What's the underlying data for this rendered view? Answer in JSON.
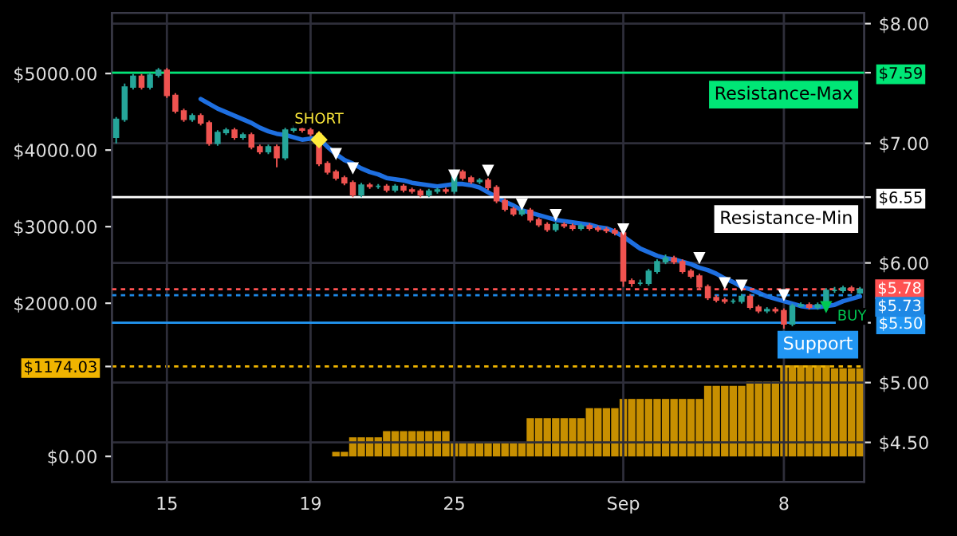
{
  "chart_data": {
    "type": "candlestick",
    "categories": [
      null,
      null,
      null,
      null,
      null,
      null,
      "15",
      null,
      null,
      null,
      null,
      null,
      null,
      null,
      null,
      null,
      null,
      null,
      null,
      null,
      null,
      null,
      null,
      "19",
      null,
      null,
      null,
      null,
      null,
      null,
      null,
      null,
      null,
      null,
      null,
      null,
      null,
      null,
      null,
      null,
      "25",
      null,
      null,
      null,
      null,
      null,
      null,
      null,
      null,
      null,
      null,
      null,
      null,
      null,
      null,
      null,
      null,
      null,
      null,
      null,
      "Sep",
      null,
      null,
      null,
      null,
      null,
      null,
      null,
      null,
      null,
      null,
      null,
      null,
      null,
      null,
      null,
      null,
      null,
      null,
      "8",
      null,
      null,
      null,
      null,
      null,
      null,
      null,
      null,
      null
    ],
    "ohlc": [
      [
        7.05,
        7.22,
        7.0,
        7.2
      ],
      [
        7.2,
        7.5,
        7.18,
        7.47
      ],
      [
        7.47,
        7.58,
        7.45,
        7.56
      ],
      [
        7.56,
        7.58,
        7.45,
        7.47
      ],
      [
        7.47,
        7.59,
        7.45,
        7.57
      ],
      [
        7.57,
        7.63,
        7.55,
        7.61
      ],
      [
        7.61,
        7.63,
        7.38,
        7.4
      ],
      [
        7.4,
        7.42,
        7.25,
        7.27
      ],
      [
        7.27,
        7.29,
        7.18,
        7.2
      ],
      [
        7.2,
        7.25,
        7.18,
        7.23
      ],
      [
        7.23,
        7.25,
        7.15,
        7.17
      ],
      [
        7.17,
        7.19,
        6.98,
        7.0
      ],
      [
        7.0,
        7.11,
        6.98,
        7.09
      ],
      [
        7.09,
        7.13,
        7.07,
        7.11
      ],
      [
        7.11,
        7.13,
        7.03,
        7.05
      ],
      [
        7.05,
        7.09,
        7.03,
        7.07
      ],
      [
        7.07,
        7.09,
        6.95,
        6.97
      ],
      [
        6.97,
        6.99,
        6.91,
        6.93
      ],
      [
        6.93,
        6.99,
        6.91,
        6.97
      ],
      [
        6.97,
        6.99,
        6.8,
        6.88
      ],
      [
        6.88,
        7.13,
        6.86,
        7.11
      ],
      [
        7.11,
        7.15,
        7.09,
        7.12
      ],
      [
        7.12,
        7.14,
        7.09,
        7.11
      ],
      [
        7.11,
        7.13,
        7.06,
        7.08
      ],
      [
        7.08,
        7.1,
        6.81,
        6.83
      ],
      [
        6.83,
        6.85,
        6.74,
        6.76
      ],
      [
        6.76,
        6.78,
        6.69,
        6.71
      ],
      [
        6.71,
        6.73,
        6.65,
        6.67
      ],
      [
        6.67,
        6.69,
        6.55,
        6.57
      ],
      [
        6.57,
        6.67,
        6.55,
        6.65
      ],
      [
        6.65,
        6.67,
        6.62,
        6.64
      ],
      [
        6.64,
        6.66,
        6.62,
        6.64
      ],
      [
        6.64,
        6.66,
        6.59,
        6.61
      ],
      [
        6.61,
        6.66,
        6.59,
        6.64
      ],
      [
        6.64,
        6.66,
        6.59,
        6.61
      ],
      [
        6.61,
        6.63,
        6.58,
        6.6
      ],
      [
        6.6,
        6.62,
        6.55,
        6.57
      ],
      [
        6.57,
        6.62,
        6.55,
        6.6
      ],
      [
        6.6,
        6.63,
        6.58,
        6.61
      ],
      [
        6.61,
        6.63,
        6.58,
        6.6
      ],
      [
        6.6,
        6.78,
        6.58,
        6.76
      ],
      [
        6.76,
        6.78,
        6.69,
        6.71
      ],
      [
        6.71,
        6.73,
        6.66,
        6.68
      ],
      [
        6.68,
        6.71,
        6.66,
        6.69
      ],
      [
        6.69,
        6.71,
        6.61,
        6.63
      ],
      [
        6.63,
        6.65,
        6.5,
        6.52
      ],
      [
        6.52,
        6.54,
        6.43,
        6.45
      ],
      [
        6.45,
        6.47,
        6.39,
        6.41
      ],
      [
        6.41,
        6.46,
        6.39,
        6.44
      ],
      [
        6.44,
        6.46,
        6.34,
        6.36
      ],
      [
        6.36,
        6.38,
        6.3,
        6.32
      ],
      [
        6.32,
        6.34,
        6.26,
        6.28
      ],
      [
        6.28,
        6.34,
        6.26,
        6.32
      ],
      [
        6.32,
        6.34,
        6.29,
        6.31
      ],
      [
        6.31,
        6.33,
        6.27,
        6.29
      ],
      [
        6.29,
        6.33,
        6.27,
        6.31
      ],
      [
        6.31,
        6.33,
        6.27,
        6.29
      ],
      [
        6.29,
        6.31,
        6.26,
        6.28
      ],
      [
        6.28,
        6.3,
        6.25,
        6.27
      ],
      [
        6.27,
        6.29,
        6.23,
        6.25
      ],
      [
        6.25,
        6.27,
        5.8,
        5.85
      ],
      [
        5.85,
        5.87,
        5.8,
        5.83
      ],
      [
        5.83,
        5.86,
        5.81,
        5.83
      ],
      [
        5.83,
        5.95,
        5.81,
        5.93
      ],
      [
        5.93,
        6.03,
        5.91,
        6.01
      ],
      [
        6.01,
        6.07,
        5.99,
        6.04
      ],
      [
        6.04,
        6.06,
        5.99,
        6.01
      ],
      [
        6.01,
        6.03,
        5.91,
        5.93
      ],
      [
        5.93,
        5.95,
        5.87,
        5.89
      ],
      [
        5.89,
        5.91,
        5.78,
        5.8
      ],
      [
        5.8,
        5.82,
        5.69,
        5.71
      ],
      [
        5.71,
        5.73,
        5.67,
        5.69
      ],
      [
        5.69,
        5.71,
        5.66,
        5.68
      ],
      [
        5.68,
        5.7,
        5.66,
        5.68
      ],
      [
        5.68,
        5.74,
        5.66,
        5.72
      ],
      [
        5.72,
        5.74,
        5.61,
        5.63
      ],
      [
        5.63,
        5.65,
        5.58,
        5.6
      ],
      [
        5.6,
        5.63,
        5.58,
        5.61
      ],
      [
        5.61,
        5.63,
        5.58,
        5.6
      ],
      [
        5.6,
        5.62,
        5.45,
        5.49
      ],
      [
        5.49,
        5.66,
        5.47,
        5.64
      ],
      [
        5.64,
        5.67,
        5.63,
        5.65
      ],
      [
        5.65,
        5.67,
        5.61,
        5.63
      ],
      [
        5.63,
        5.67,
        5.61,
        5.65
      ],
      [
        5.65,
        5.79,
        5.63,
        5.77
      ],
      [
        5.77,
        5.8,
        5.75,
        5.77
      ],
      [
        5.77,
        5.81,
        5.75,
        5.79
      ],
      [
        5.79,
        5.81,
        5.75,
        5.77
      ],
      [
        5.75,
        5.8,
        5.74,
        5.78
      ]
    ],
    "series": [
      {
        "type": "bar",
        "axis": "y2",
        "color": "#c78f00",
        "values": [
          0,
          0,
          0,
          0,
          0,
          0,
          0,
          0,
          0,
          0,
          0,
          0,
          0,
          0,
          0,
          0,
          0,
          0,
          0,
          0,
          0,
          0,
          0,
          0,
          0,
          0,
          60,
          60,
          250,
          250,
          250,
          250,
          330,
          330,
          330,
          330,
          330,
          330,
          330,
          330,
          170,
          170,
          170,
          170,
          170,
          170,
          170,
          170,
          170,
          500,
          500,
          500,
          500,
          500,
          500,
          500,
          630,
          630,
          630,
          630,
          750,
          750,
          750,
          750,
          750,
          750,
          750,
          750,
          750,
          750,
          920,
          920,
          920,
          920,
          920,
          980,
          980,
          980,
          980,
          1190,
          1190,
          1190,
          1190,
          1190,
          1190,
          1150,
          1150,
          1150,
          1150
        ]
      },
      {
        "type": "line",
        "color": "#1e6fe0",
        "values": [
          null,
          null,
          null,
          null,
          null,
          null,
          null,
          null,
          null,
          null,
          7.37,
          7.33,
          7.29,
          7.26,
          7.23,
          7.2,
          7.17,
          7.13,
          7.1,
          7.08,
          7.07,
          7.05,
          7.03,
          7.04,
          7.04,
          6.97,
          6.91,
          6.86,
          6.83,
          6.79,
          6.76,
          6.74,
          6.71,
          6.7,
          6.69,
          6.67,
          6.66,
          6.65,
          6.64,
          6.65,
          6.66,
          6.66,
          6.65,
          6.63,
          6.59,
          6.55,
          6.51,
          6.48,
          6.44,
          6.42,
          6.4,
          6.38,
          6.36,
          6.35,
          6.34,
          6.33,
          6.32,
          6.3,
          6.29,
          6.26,
          6.22,
          6.17,
          6.12,
          6.09,
          6.06,
          6.04,
          6.03,
          6.01,
          5.99,
          5.96,
          5.94,
          5.91,
          5.87,
          5.84,
          5.8,
          5.78,
          5.75,
          5.72,
          5.7,
          5.68,
          5.66,
          5.64,
          5.63,
          5.63,
          5.64,
          5.65,
          5.68,
          5.7,
          5.72
        ]
      },
      {
        "type": "scatter",
        "color": "#ffffff",
        "marker": "triangle",
        "values": [
          null,
          null,
          null,
          null,
          null,
          null,
          null,
          null,
          null,
          null,
          null,
          null,
          null,
          null,
          null,
          null,
          null,
          null,
          null,
          null,
          null,
          null,
          null,
          null,
          null,
          null,
          6.91,
          null,
          6.79,
          null,
          null,
          null,
          null,
          null,
          null,
          null,
          null,
          null,
          null,
          null,
          6.73,
          null,
          null,
          null,
          6.77,
          null,
          null,
          null,
          6.49,
          null,
          null,
          null,
          6.4,
          null,
          null,
          null,
          null,
          null,
          null,
          null,
          6.28,
          null,
          null,
          null,
          null,
          null,
          null,
          null,
          null,
          6.04,
          null,
          null,
          5.83,
          null,
          5.81,
          null,
          null,
          null,
          null,
          5.73,
          null,
          null,
          null,
          null,
          null,
          null,
          null,
          null,
          null
        ]
      },
      {
        "type": "scatter",
        "name": "SHORT",
        "color": "#ffeb3b",
        "marker": "diamond",
        "values": [
          null,
          null,
          null,
          null,
          null,
          null,
          null,
          null,
          null,
          null,
          null,
          null,
          null,
          null,
          null,
          null,
          null,
          null,
          null,
          null,
          null,
          null,
          null,
          null,
          7.03,
          null,
          null,
          null,
          null,
          null,
          null,
          null,
          null,
          null,
          null,
          null,
          null,
          null,
          null,
          null,
          null,
          null,
          null,
          null,
          null,
          null,
          null,
          null,
          null,
          null,
          null,
          null,
          null,
          null,
          null,
          null,
          null,
          null,
          null,
          null,
          null,
          null,
          null,
          null,
          null,
          null,
          null,
          null,
          null,
          null,
          null,
          null,
          null,
          null,
          null,
          null,
          null,
          null,
          null,
          null,
          null,
          null,
          null,
          null,
          null,
          null,
          null,
          null,
          null
        ]
      },
      {
        "type": "scatter",
        "name": "BUY",
        "color": "#00c853",
        "marker": "triangle",
        "values": [
          null,
          null,
          null,
          null,
          null,
          null,
          null,
          null,
          null,
          null,
          null,
          null,
          null,
          null,
          null,
          null,
          null,
          null,
          null,
          null,
          null,
          null,
          null,
          null,
          null,
          null,
          null,
          null,
          null,
          null,
          null,
          null,
          null,
          null,
          null,
          null,
          null,
          null,
          null,
          null,
          null,
          null,
          null,
          null,
          null,
          null,
          null,
          null,
          null,
          null,
          null,
          null,
          null,
          null,
          null,
          null,
          null,
          null,
          null,
          null,
          null,
          null,
          null,
          null,
          null,
          null,
          null,
          null,
          null,
          null,
          null,
          null,
          null,
          null,
          null,
          null,
          null,
          null,
          null,
          null,
          null,
          null,
          null,
          null,
          5.63,
          null,
          null,
          null,
          null
        ]
      }
    ],
    "ylim": [
      4.17,
      8.09
    ],
    "yticks": [
      {
        "value": 8,
        "label": "$8.00"
      },
      {
        "value": 7,
        "label": "$7.00"
      },
      {
        "value": 6,
        "label": "$6.00"
      },
      {
        "value": 5,
        "label": "$5.00"
      },
      {
        "value": 4.5,
        "label": "$4.50"
      },
      {
        "value": 7.59,
        "label": "$7.59"
      },
      {
        "value": 6.55,
        "label": "$6.55"
      },
      {
        "value": 5.5,
        "label": "$5.50"
      }
    ],
    "y2lim": [
      -333,
      5792
    ],
    "y2ticks": [
      {
        "value": 0,
        "label": "$0.00"
      },
      {
        "value": 2000,
        "label": "$2000.00"
      },
      {
        "value": 3000,
        "label": "$3000.00"
      },
      {
        "value": 4000,
        "label": "$4000.00"
      },
      {
        "value": 5000,
        "label": "$5000.00"
      },
      {
        "value": 1174.03,
        "label": "$1174.03"
      }
    ],
    "ref_lines": [
      {
        "axis": "y",
        "value": 7.59,
        "label": "Resistance-Max",
        "color": "#00e676"
      },
      {
        "axis": "y",
        "value": 6.55,
        "label": "Resistance-Min",
        "color": "#ffffff"
      },
      {
        "axis": "y",
        "value": 5.5,
        "label": "Support",
        "color": "#2196f3"
      },
      {
        "axis": "y",
        "value": 5.78,
        "label": "$5.78",
        "color": "#ff5252",
        "line_style": "dotted"
      },
      {
        "axis": "y",
        "value": 5.73,
        "label": "$5.73",
        "color": "#1e88e5",
        "line_style": "dotted"
      },
      {
        "axis": "y2",
        "value": 1174.03,
        "color": "#f0b400",
        "line_style": "dotted"
      }
    ],
    "grid": true
  }
}
